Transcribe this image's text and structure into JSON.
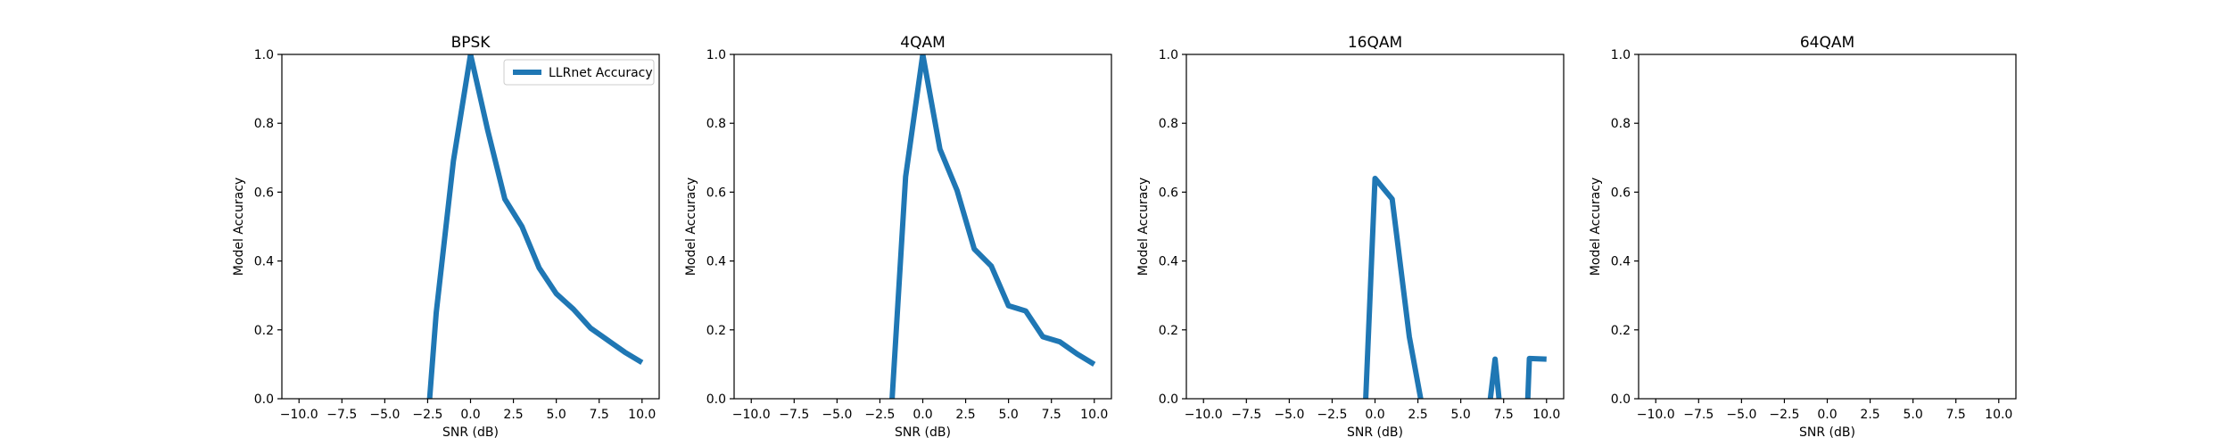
{
  "chart_data": [
    {
      "type": "line",
      "title": "BPSK",
      "xlabel": "SNR (dB)",
      "ylabel": "Model Accuracy",
      "xlim": [
        -11,
        11
      ],
      "ylim": [
        0,
        1
      ],
      "x_ticks": [
        "−10.0",
        "−7.5",
        "−5.0",
        "−2.5",
        "0.0",
        "2.5",
        "5.0",
        "7.5",
        "10.0"
      ],
      "y_ticks": [
        "0.0",
        "0.2",
        "0.4",
        "0.6",
        "0.8",
        "1.0"
      ],
      "legend": {
        "show": true,
        "position": "top-right"
      },
      "series": [
        {
          "name": "LLRnet Accuracy",
          "color": "#1f77b4",
          "x": [
            -2.4,
            -2,
            -1,
            0,
            1,
            2,
            3,
            4,
            5,
            6,
            7,
            8,
            9,
            10
          ],
          "y": [
            -0.01,
            0.25,
            0.69,
            1.0,
            0.78,
            0.58,
            0.5,
            0.38,
            0.305,
            0.26,
            0.205,
            0.17,
            0.135,
            0.105
          ]
        }
      ]
    },
    {
      "type": "line",
      "title": "4QAM",
      "xlabel": "SNR (dB)",
      "ylabel": "Model Accuracy",
      "xlim": [
        -11,
        11
      ],
      "ylim": [
        0,
        1
      ],
      "x_ticks": [
        "−10.0",
        "−7.5",
        "−5.0",
        "−2.5",
        "0.0",
        "2.5",
        "5.0",
        "7.5",
        "10.0"
      ],
      "y_ticks": [
        "0.0",
        "0.2",
        "0.4",
        "0.6",
        "0.8",
        "1.0"
      ],
      "legend": {
        "show": false
      },
      "series": [
        {
          "name": "",
          "color": "#1f77b4",
          "x": [
            -1.8,
            -1,
            0,
            1,
            2,
            3,
            4,
            5,
            6,
            7,
            8,
            9,
            10
          ],
          "y": [
            -0.01,
            0.645,
            1.0,
            0.725,
            0.605,
            0.435,
            0.385,
            0.27,
            0.255,
            0.18,
            0.165,
            0.13,
            0.1
          ]
        }
      ]
    },
    {
      "type": "line",
      "title": "16QAM",
      "xlabel": "SNR (dB)",
      "ylabel": "Model Accuracy",
      "xlim": [
        -11,
        11
      ],
      "ylim": [
        0,
        1
      ],
      "x_ticks": [
        "−10.0",
        "−7.5",
        "−5.0",
        "−2.5",
        "0.0",
        "2.5",
        "5.0",
        "7.5",
        "10.0"
      ],
      "y_ticks": [
        "0.0",
        "0.2",
        "0.4",
        "0.6",
        "0.8",
        "1.0"
      ],
      "legend": {
        "show": false
      },
      "series": [
        {
          "name": "",
          "color": "#1f77b4",
          "x": [
            -0.55,
            0,
            1,
            2,
            2.7
          ],
          "y": [
            -0.01,
            0.64,
            0.58,
            0.18,
            -0.01
          ]
        },
        {
          "name": "",
          "color": "#1f77b4",
          "x": [
            6.7,
            7,
            7.25
          ],
          "y": [
            -0.01,
            0.115,
            -0.01
          ]
        },
        {
          "name": "",
          "color": "#1f77b4",
          "x": [
            8.9,
            9,
            10
          ],
          "y": [
            -0.01,
            0.117,
            0.115
          ]
        }
      ]
    },
    {
      "type": "line",
      "title": "64QAM",
      "xlabel": "SNR (dB)",
      "ylabel": "Model Accuracy",
      "xlim": [
        -11,
        11
      ],
      "ylim": [
        0,
        1
      ],
      "x_ticks": [
        "−10.0",
        "−7.5",
        "−5.0",
        "−2.5",
        "0.0",
        "2.5",
        "5.0",
        "7.5",
        "10.0"
      ],
      "y_ticks": [
        "0.0",
        "0.2",
        "0.4",
        "0.6",
        "0.8",
        "1.0"
      ],
      "legend": {
        "show": false
      },
      "series": []
    }
  ]
}
